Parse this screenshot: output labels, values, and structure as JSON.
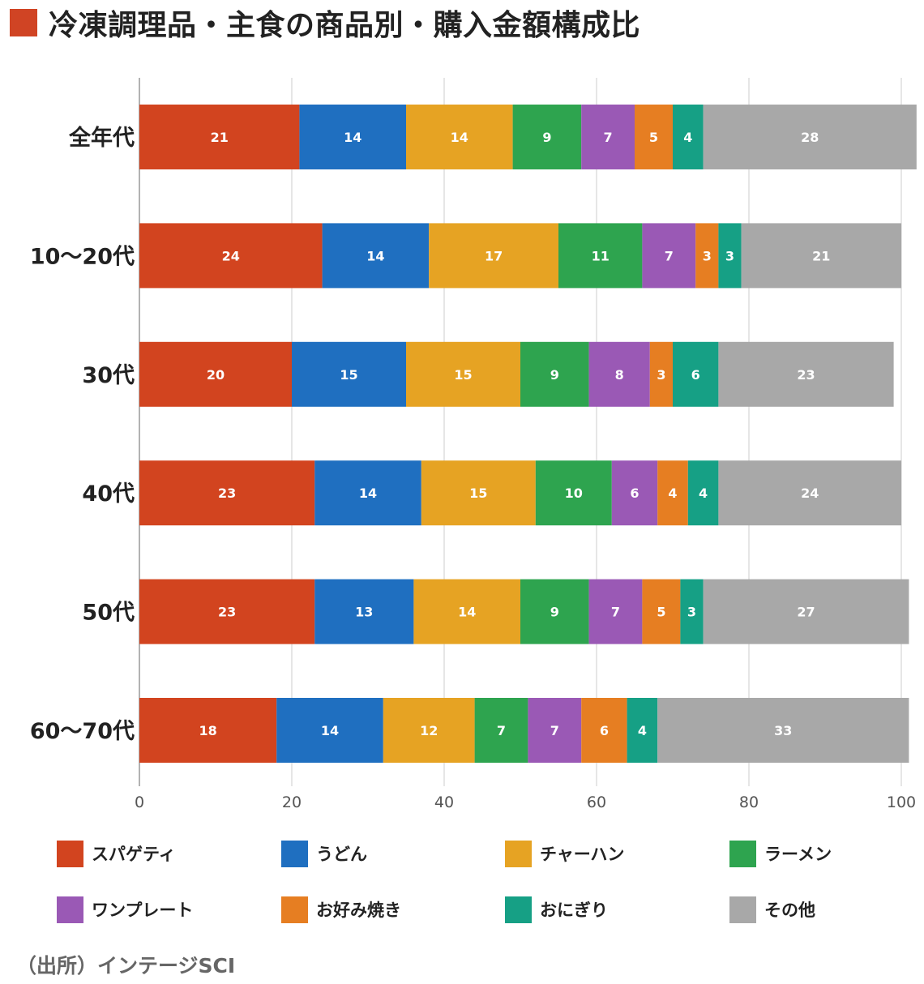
{
  "title": "冷凍調理品・主食の商品別・購入金額構成比",
  "source": "（出所）インテージSCI",
  "colors": {
    "title_square": "#d04424",
    "grid": "#cccccc",
    "axis": "#999999",
    "bar_label": "#ffffff",
    "tick_label": "#555555"
  },
  "chart_data": {
    "type": "bar",
    "orientation": "horizontal",
    "stacked": true,
    "title": "冷凍調理品・主食の商品別・購入金額構成比",
    "xlim": [
      0,
      100
    ],
    "x_ticks": [
      0,
      20,
      40,
      60,
      80,
      100
    ],
    "grid": true,
    "legend_position": "bottom",
    "categories": [
      "全年代",
      "10〜20代",
      "30代",
      "40代",
      "50代",
      "60〜70代"
    ],
    "series": [
      {
        "name": "スパゲティ",
        "color": "#d2441f",
        "values": [
          21,
          24,
          20,
          23,
          23,
          18
        ]
      },
      {
        "name": "うどん",
        "color": "#1f6fc0",
        "values": [
          14,
          14,
          15,
          14,
          13,
          14
        ]
      },
      {
        "name": "チャーハン",
        "color": "#e6a323",
        "values": [
          14,
          17,
          15,
          15,
          14,
          12
        ]
      },
      {
        "name": "ラーメン",
        "color": "#2ea44f",
        "values": [
          9,
          11,
          9,
          10,
          9,
          7
        ]
      },
      {
        "name": "ワンプレート",
        "color": "#9a59b5",
        "values": [
          7,
          7,
          8,
          6,
          7,
          7
        ]
      },
      {
        "name": "お好み焼き",
        "color": "#e67e22",
        "values": [
          5,
          3,
          3,
          4,
          5,
          6
        ]
      },
      {
        "name": "おにぎり",
        "color": "#16a085",
        "values": [
          4,
          3,
          6,
          4,
          3,
          4
        ]
      },
      {
        "name": "その他",
        "color": "#a8a8a8",
        "values": [
          28,
          21,
          23,
          24,
          27,
          33
        ]
      }
    ]
  }
}
